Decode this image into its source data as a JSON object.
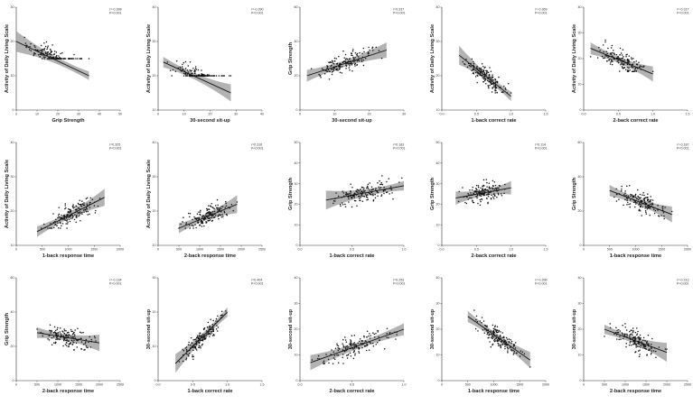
{
  "chart_data": [
    {
      "id": "p1",
      "type": "scatter",
      "xlabel": "Grip Strength",
      "ylabel": "Activity of Daily Living Scale",
      "stat_r": "r=-0.398",
      "stat_p": "P<0.001",
      "xlim": [
        0,
        50
      ],
      "ylim": [
        0,
        30
      ],
      "xticks": [
        "0",
        "10",
        "20",
        "30",
        "40",
        "50"
      ],
      "yticks": [
        "0",
        "10",
        "20",
        "30"
      ],
      "fit": {
        "x": [
          0,
          35
        ],
        "y": [
          20,
          10
        ]
      },
      "floor": 15,
      "xmean": 25
    },
    {
      "id": "p2",
      "type": "scatter",
      "xlabel": "30-second sit-up",
      "ylabel": "Activity of Daily Living Scale",
      "stat_r": "r=-0.390",
      "stat_p": "P<0.001",
      "xlim": [
        0,
        40
      ],
      "ylim": [
        10,
        40
      ],
      "xticks": [
        "0",
        "10",
        "20",
        "30",
        "40"
      ],
      "yticks": [
        "10",
        "20",
        "30",
        "40"
      ],
      "fit": {
        "x": [
          2,
          28
        ],
        "y": [
          24,
          15
        ]
      },
      "floor": 20,
      "xmean": 12
    },
    {
      "id": "p3",
      "type": "scatter",
      "xlabel": "30-second sit-up",
      "ylabel": "Grip Strength",
      "stat_r": "r=0.337",
      "stat_p": "P<0.001",
      "xlim": [
        0,
        30
      ],
      "ylim": [
        0,
        60
      ],
      "xticks": [
        "0",
        "10",
        "20",
        "30"
      ],
      "yticks": [
        "0",
        "20",
        "40",
        "60"
      ],
      "fit": {
        "x": [
          2,
          25
        ],
        "y": [
          20,
          35
        ]
      },
      "floor": null,
      "xmean": 12
    },
    {
      "id": "p4",
      "type": "scatter",
      "xlabel": "1-back correct rate",
      "ylabel": "Activity of Daily Living Scale",
      "stat_r": "r=-0.369",
      "stat_p": "P<0.001",
      "xlim": [
        0,
        1.5
      ],
      "ylim": [
        10,
        40
      ],
      "xticks": [
        "0.0",
        "0.5",
        "1.0",
        "1.5"
      ],
      "yticks": [
        "10",
        "20",
        "30",
        "40"
      ],
      "fit": {
        "x": [
          0.25,
          1.0
        ],
        "y": [
          26,
          14
        ]
      },
      "floor": 15,
      "xmean": 0.75
    },
    {
      "id": "p5",
      "type": "scatter",
      "xlabel": "2-back correct rate",
      "ylabel": "Activity of Daily Living Scale",
      "stat_r": "r=-0.317",
      "stat_p": "P<0.001",
      "xlim": [
        0,
        1.5
      ],
      "ylim": [
        0,
        40
      ],
      "xticks": [
        "0.0",
        "0.5",
        "1.0",
        "1.5"
      ],
      "yticks": [
        "0",
        "10",
        "20",
        "30",
        "40"
      ],
      "fit": {
        "x": [
          0.1,
          1.0
        ],
        "y": [
          24,
          14
        ]
      },
      "floor": 15,
      "xmean": 0.5
    },
    {
      "id": "p6",
      "type": "scatter",
      "xlabel": "1-back response time",
      "ylabel": "Activity of Daily Living Scale",
      "stat_r": "r=0.325",
      "stat_p": "P<0.001",
      "xlim": [
        0,
        2000
      ],
      "ylim": [
        10,
        40
      ],
      "xticks": [
        "0",
        "500",
        "1000",
        "1500",
        "2000"
      ],
      "yticks": [
        "10",
        "20",
        "30",
        "40"
      ],
      "fit": {
        "x": [
          400,
          1700
        ],
        "y": [
          14,
          24
        ]
      },
      "floor": 15,
      "xmean": 900
    },
    {
      "id": "p7",
      "type": "scatter",
      "xlabel": "2-back response time",
      "ylabel": "Activity of Daily Living Scale",
      "stat_r": "r=0.316",
      "stat_p": "P<0.001",
      "xlim": [
        0,
        2500
      ],
      "ylim": [
        10,
        40
      ],
      "xticks": [
        "0",
        "500",
        "1000",
        "1500",
        "2000",
        "2500"
      ],
      "yticks": [
        "10",
        "20",
        "30",
        "40"
      ],
      "fit": {
        "x": [
          500,
          1900
        ],
        "y": [
          15,
          22
        ]
      },
      "floor": 15,
      "xmean": 1000
    },
    {
      "id": "p8",
      "type": "scatter",
      "xlabel": "1-back correct rate",
      "ylabel": "Grip Strength",
      "stat_r": "r=0.183",
      "stat_p": "P<0.001",
      "xlim": [
        0,
        1.0
      ],
      "ylim": [
        0,
        50
      ],
      "xticks": [
        "0.0",
        "0.5",
        "1.0"
      ],
      "yticks": [
        "0",
        "10",
        "20",
        "30",
        "40",
        "50"
      ],
      "fit": {
        "x": [
          0.25,
          1.0
        ],
        "y": [
          22,
          29
        ]
      },
      "floor": null,
      "xmean": 0.75
    },
    {
      "id": "p9",
      "type": "scatter",
      "xlabel": "2-back correct rate",
      "ylabel": "Grip Strength",
      "stat_r": "r=0.114",
      "stat_p": "P<0.001",
      "xlim": [
        0,
        1.5
      ],
      "ylim": [
        0,
        50
      ],
      "xticks": [
        "0.0",
        "0.5",
        "1.0",
        "1.5"
      ],
      "yticks": [
        "0",
        "10",
        "20",
        "30",
        "40",
        "50"
      ],
      "fit": {
        "x": [
          0.2,
          1.0
        ],
        "y": [
          23,
          28
        ]
      },
      "floor": null,
      "xmean": 0.6
    },
    {
      "id": "p10",
      "type": "scatter",
      "xlabel": "1-back response time",
      "ylabel": "Grip Strength",
      "stat_r": "r=-0.187",
      "stat_p": "P<0.001",
      "xlim": [
        0,
        2000
      ],
      "ylim": [
        0,
        60
      ],
      "xticks": [
        "0",
        "500",
        "1000",
        "1500",
        "2000"
      ],
      "yticks": [
        "0",
        "20",
        "40",
        "60"
      ],
      "fit": {
        "x": [
          500,
          1700
        ],
        "y": [
          32,
          18
        ]
      },
      "floor": null,
      "xmean": 1000
    },
    {
      "id": "p11",
      "type": "scatter",
      "xlabel": "2-back response time",
      "ylabel": "Grip Strength",
      "stat_r": "r=-0.134",
      "stat_p": "P<0.001",
      "xlim": [
        0,
        2500
      ],
      "ylim": [
        0,
        60
      ],
      "xticks": [
        "0",
        "500",
        "1000",
        "1500",
        "2000",
        "2500"
      ],
      "yticks": [
        "0",
        "20",
        "40",
        "60"
      ],
      "fit": {
        "x": [
          500,
          2000
        ],
        "y": [
          28,
          22
        ]
      },
      "floor": null,
      "xmean": 1100
    },
    {
      "id": "p12",
      "type": "scatter",
      "xlabel": "1-back correct rate",
      "ylabel": "30-second sit-up",
      "stat_r": "r=0.404",
      "stat_p": "P<0.001",
      "xlim": [
        0,
        1.5
      ],
      "ylim": [
        0,
        30
      ],
      "xticks": [
        "0.0",
        "0.5",
        "1.0",
        "1.5"
      ],
      "yticks": [
        "0",
        "10",
        "20",
        "30"
      ],
      "fit": {
        "x": [
          0.25,
          1.0
        ],
        "y": [
          5,
          20
        ]
      },
      "floor": null,
      "xmean": 0.75
    },
    {
      "id": "p13",
      "type": "scatter",
      "xlabel": "2-back correct rate",
      "ylabel": "30-second sit-up",
      "stat_r": "r=0.253",
      "stat_p": "P<0.001",
      "xlim": [
        0,
        1.0
      ],
      "ylim": [
        0,
        40
      ],
      "xticks": [
        "0.0",
        "0.5",
        "1.0"
      ],
      "yticks": [
        "0",
        "10",
        "20",
        "30",
        "40"
      ],
      "fit": {
        "x": [
          0.1,
          1.0
        ],
        "y": [
          7,
          20
        ]
      },
      "floor": null,
      "xmean": 0.6
    },
    {
      "id": "p14",
      "type": "scatter",
      "xlabel": "1-back response time",
      "ylabel": "30-second sit-up",
      "stat_r": "r=-0.396",
      "stat_p": "P<0.001",
      "xlim": [
        0,
        2000
      ],
      "ylim": [
        0,
        40
      ],
      "xticks": [
        "0",
        "500",
        "1000",
        "1500",
        "2000"
      ],
      "yticks": [
        "0",
        "10",
        "20",
        "30",
        "40"
      ],
      "fit": {
        "x": [
          500,
          1700
        ],
        "y": [
          25,
          8
        ]
      },
      "floor": null,
      "xmean": 1000
    },
    {
      "id": "p15",
      "type": "scatter",
      "xlabel": "2-back response time",
      "ylabel": "30-second sit-up",
      "stat_r": "r=-0.313",
      "stat_p": "P<0.001",
      "xlim": [
        0,
        2500
      ],
      "ylim": [
        0,
        40
      ],
      "xticks": [
        "0",
        "500",
        "1000",
        "1500",
        "2000",
        "2500"
      ],
      "yticks": [
        "0",
        "10",
        "20",
        "30",
        "40"
      ],
      "fit": {
        "x": [
          500,
          2000
        ],
        "y": [
          20,
          11
        ]
      },
      "floor": null,
      "xmean": 1000
    }
  ]
}
